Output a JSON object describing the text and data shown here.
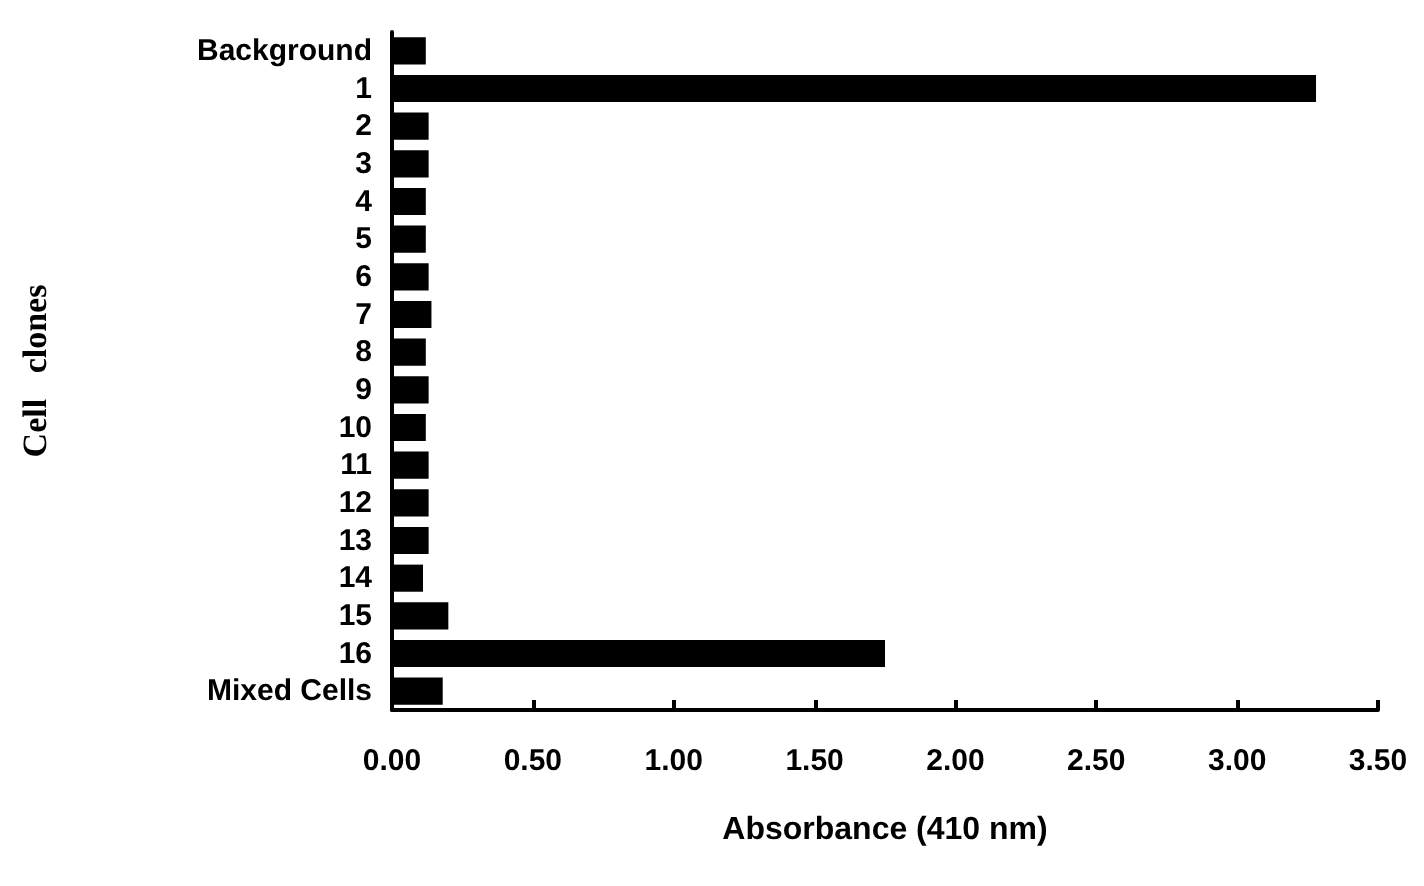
{
  "chart_data": {
    "type": "bar",
    "orientation": "horizontal",
    "xlabel": "Absorbance (410 nm)",
    "ylabel": "Cell   clones",
    "categories": [
      "Background",
      "1",
      "2",
      "3",
      "4",
      "5",
      "6",
      "7",
      "8",
      "9",
      "10",
      "11",
      "12",
      "13",
      "14",
      "15",
      "16",
      "Mixed Cells"
    ],
    "values": [
      0.12,
      3.28,
      0.13,
      0.13,
      0.12,
      0.12,
      0.13,
      0.14,
      0.12,
      0.13,
      0.12,
      0.13,
      0.13,
      0.13,
      0.11,
      0.2,
      1.75,
      0.18
    ],
    "color": "#000000",
    "xlim": [
      0,
      3.5
    ],
    "xticks": [
      {
        "value": 0,
        "label": "0.00"
      },
      {
        "value": 0.5,
        "label": "0.50"
      },
      {
        "value": 1,
        "label": "1.00"
      },
      {
        "value": 1.5,
        "label": "1.50"
      },
      {
        "value": 2,
        "label": "2.00"
      },
      {
        "value": 2.5,
        "label": "2.50"
      },
      {
        "value": 3,
        "label": "3.00"
      },
      {
        "value": 3.5,
        "label": "3.50"
      }
    ]
  }
}
